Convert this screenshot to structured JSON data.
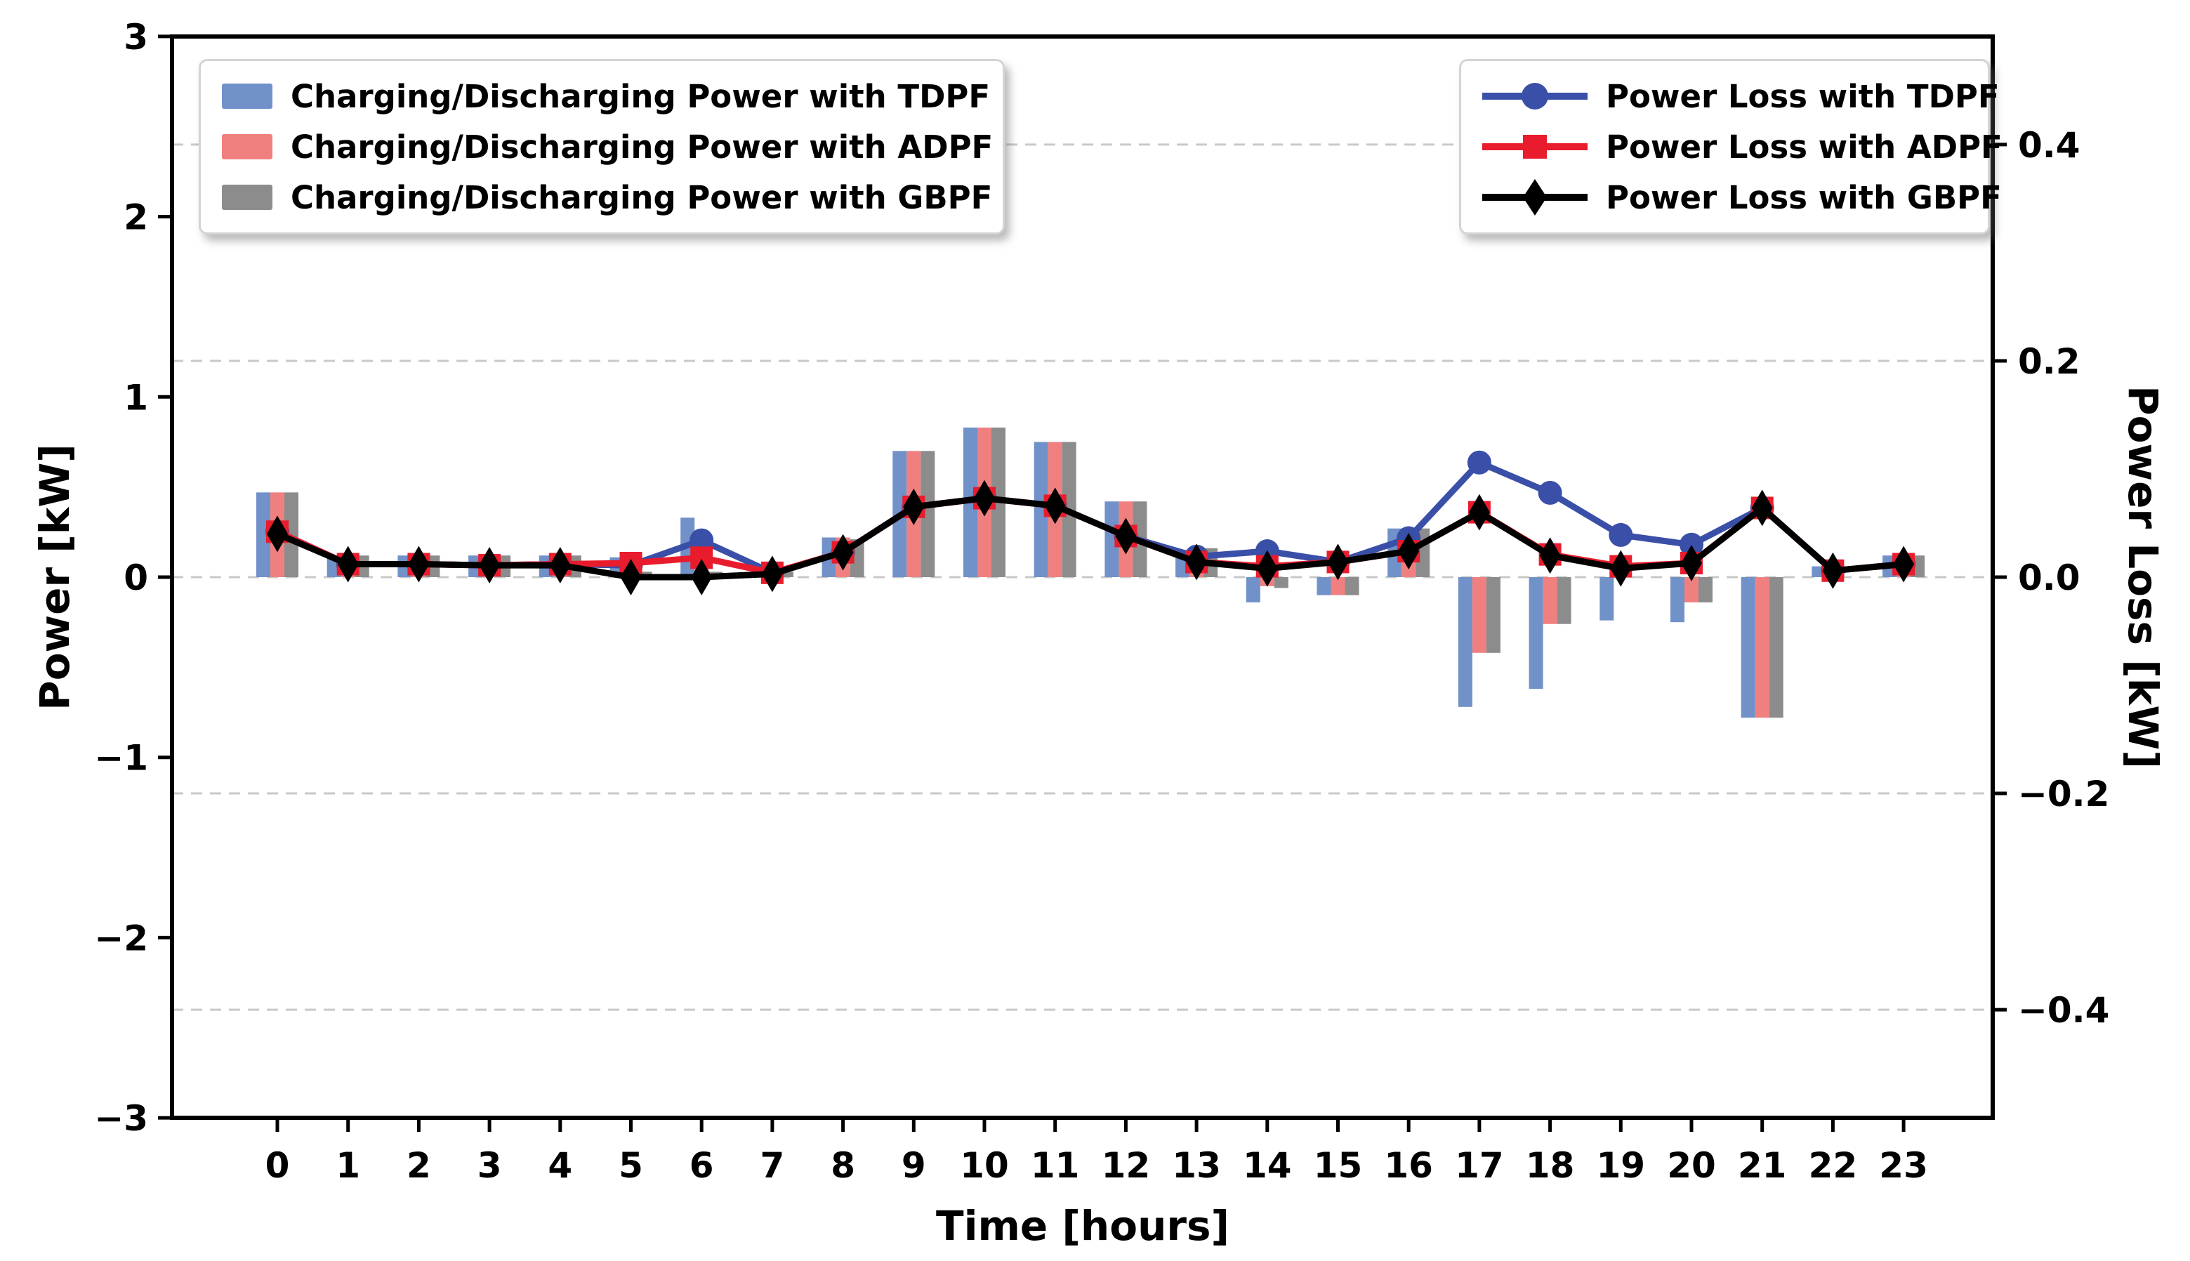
{
  "axes": {
    "left": {
      "label": "Power [kW]",
      "tick_labels": [
        "3",
        "2",
        "1",
        "0",
        "−1",
        "−2",
        "−3"
      ],
      "tick_values": [
        3,
        2,
        1,
        0,
        -1,
        -2,
        -3
      ],
      "range": [
        -3,
        3
      ]
    },
    "right": {
      "label": "Power Loss [kW]",
      "tick_labels": [
        "0.4",
        "0.2",
        "0.0",
        "−0.2",
        "−0.4"
      ],
      "tick_values": [
        0.4,
        0.2,
        0.0,
        -0.2,
        -0.4
      ],
      "range": [
        -0.5,
        0.5
      ]
    },
    "bottom": {
      "label": "Time [hours]"
    }
  },
  "colors": {
    "bar_tdpf": "#7191C9",
    "bar_adpf": "#F08080",
    "bar_gbpf": "#8C8C8C",
    "line_tdpf": "#3A4FA7",
    "line_adpf": "#E81C2C",
    "line_gbpf": "#000000",
    "grid": "#c9c9c9",
    "spine": "#000000"
  },
  "legend_bars": {
    "items": [
      {
        "label": "Charging/Discharging Power with TDPF",
        "color": "#7191C9"
      },
      {
        "label": "Charging/Discharging Power with ADPF",
        "color": "#F08080"
      },
      {
        "label": "Charging/Discharging Power with GBPF",
        "color": "#8C8C8C"
      }
    ]
  },
  "legend_lines": {
    "items": [
      {
        "label": "Power Loss with TDPF",
        "color": "#3A4FA7",
        "marker": "circle"
      },
      {
        "label": "Power Loss with ADPF",
        "color": "#E81C2C",
        "marker": "square"
      },
      {
        "label": "Power Loss with GBPF",
        "color": "#000000",
        "marker": "diamond"
      }
    ]
  },
  "chart_data": {
    "type": "bar+line",
    "title": "",
    "xlabel": "Time [hours]",
    "ylabel_left": "Power [kW]",
    "ylabel_right": "Power Loss [kW]",
    "x_categories": [
      "0",
      "1",
      "2",
      "3",
      "4",
      "5",
      "6",
      "7",
      "8",
      "9",
      "10",
      "11",
      "12",
      "13",
      "14",
      "15",
      "16",
      "17",
      "18",
      "19",
      "20",
      "21",
      "22",
      "23"
    ],
    "grid": "dashed horizontal at right-axis ticks",
    "legend_position": "bar legend upper-left, line legend upper-right",
    "ylim_left": [
      -3,
      3
    ],
    "ylim_right": [
      -0.5,
      0.5
    ],
    "bar_series": [
      {
        "name": "Charging/Discharging Power with TDPF",
        "axis": "left",
        "color": "#7191C9",
        "values": [
          0.47,
          0.12,
          0.12,
          0.12,
          0.12,
          0.11,
          0.33,
          0.02,
          0.22,
          0.7,
          0.83,
          0.75,
          0.42,
          0.15,
          -0.14,
          -0.1,
          0.27,
          -0.72,
          -0.62,
          -0.24,
          -0.25,
          -0.78,
          0.06,
          0.12
        ]
      },
      {
        "name": "Charging/Discharging Power with ADPF",
        "axis": "left",
        "color": "#F08080",
        "values": [
          0.47,
          0.12,
          0.12,
          0.12,
          0.12,
          0.05,
          0.14,
          0.02,
          0.22,
          0.7,
          0.83,
          0.75,
          0.42,
          0.15,
          -0.05,
          -0.1,
          0.27,
          -0.42,
          -0.26,
          0,
          -0.14,
          -0.78,
          0,
          0.1
        ]
      },
      {
        "name": "Charging/Discharging Power with GBPF",
        "axis": "left",
        "color": "#8C8C8C",
        "values": [
          0.47,
          0.12,
          0.12,
          0.12,
          0.12,
          0.03,
          0.03,
          0.03,
          0.21,
          0.7,
          0.83,
          0.75,
          0.42,
          0.16,
          -0.06,
          -0.1,
          0.27,
          -0.42,
          -0.26,
          0,
          -0.14,
          -0.78,
          0,
          0.12
        ]
      }
    ],
    "line_series": [
      {
        "name": "Power Loss with TDPF",
        "axis": "right",
        "color": "#3A4FA7",
        "marker": "circle",
        "values": [
          0.042,
          0.012,
          0.012,
          0.011,
          0.012,
          0.011,
          0.034,
          0.004,
          0.023,
          0.065,
          0.073,
          0.066,
          0.038,
          0.019,
          0.024,
          0.014,
          0.036,
          0.106,
          0.078,
          0.039,
          0.03,
          0.064,
          0.006,
          0.012
        ]
      },
      {
        "name": "Power Loss with ADPF",
        "axis": "right",
        "color": "#E81C2C",
        "marker": "square",
        "values": [
          0.042,
          0.012,
          0.012,
          0.011,
          0.012,
          0.013,
          0.018,
          0.004,
          0.023,
          0.065,
          0.073,
          0.066,
          0.038,
          0.014,
          0.01,
          0.014,
          0.024,
          0.06,
          0.021,
          0.01,
          0.013,
          0.064,
          0.006,
          0.012
        ]
      },
      {
        "name": "Power Loss with GBPF",
        "axis": "right",
        "color": "#000000",
        "marker": "diamond",
        "values": [
          0.04,
          0.012,
          0.012,
          0.011,
          0.011,
          0.0,
          0.0,
          0.003,
          0.023,
          0.065,
          0.073,
          0.066,
          0.038,
          0.014,
          0.008,
          0.014,
          0.024,
          0.06,
          0.02,
          0.008,
          0.013,
          0.064,
          0.006,
          0.012
        ]
      }
    ]
  }
}
